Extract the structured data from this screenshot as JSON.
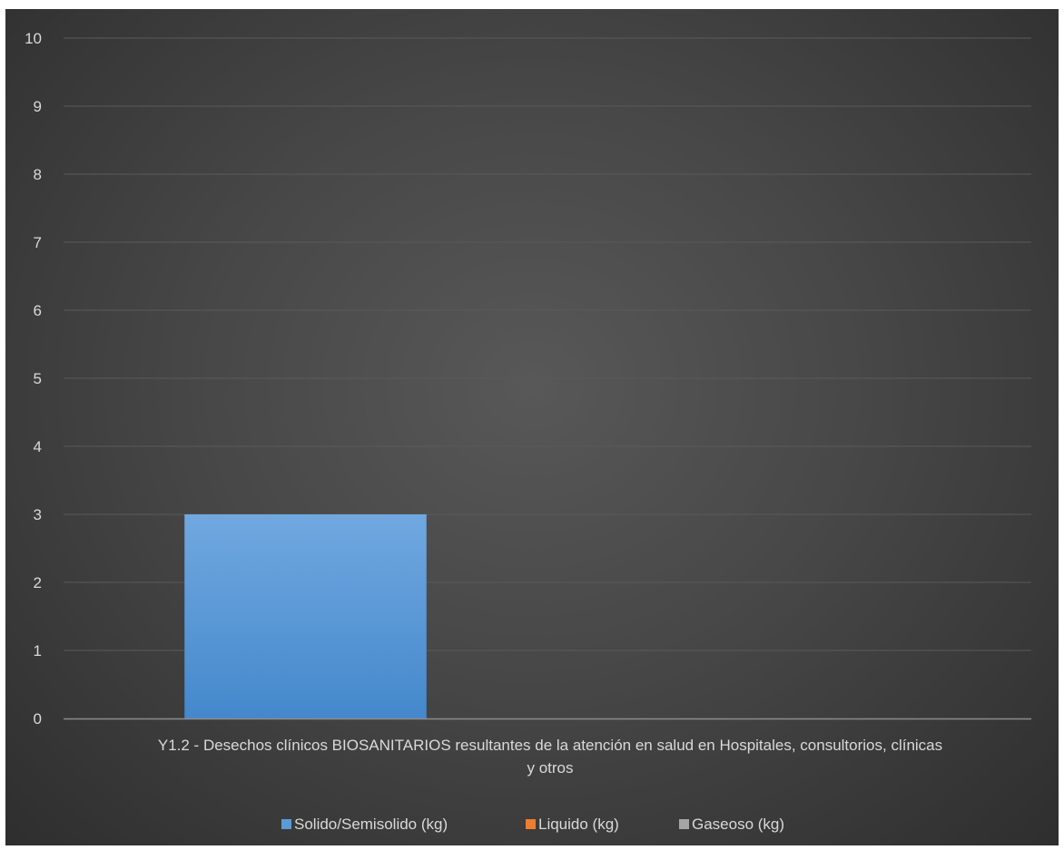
{
  "chart_data": {
    "type": "bar",
    "categories": [
      "Y1.2 - Desechos clínicos BIOSANITARIOS resultantes de la atención en salud en Hospitales, consultorios, clínicas y otros"
    ],
    "category_label_lines": [
      "Y1.2 - Desechos clínicos BIOSANITARIOS resultantes de la atención en salud en Hospitales, consultorios, clínicas",
      "y otros"
    ],
    "series": [
      {
        "name": "Solido/Semisolido (kg)",
        "values": [
          3
        ],
        "color": "#5b9bd5"
      },
      {
        "name": "Liquido (kg)",
        "values": [
          0
        ],
        "color": "#ed7d31"
      },
      {
        "name": "Gaseoso (kg)",
        "values": [
          0
        ],
        "color": "#a5a5a5"
      }
    ],
    "ylim": [
      0,
      10
    ],
    "yticks": [
      0,
      1,
      2,
      3,
      4,
      5,
      6,
      7,
      8,
      9,
      10
    ],
    "grid": true,
    "legend_position": "bottom",
    "colors": {
      "background": "#404040",
      "gridline": "#5a5a5a",
      "axis": "#8c8c8c",
      "text": "#d9d9d9"
    }
  }
}
